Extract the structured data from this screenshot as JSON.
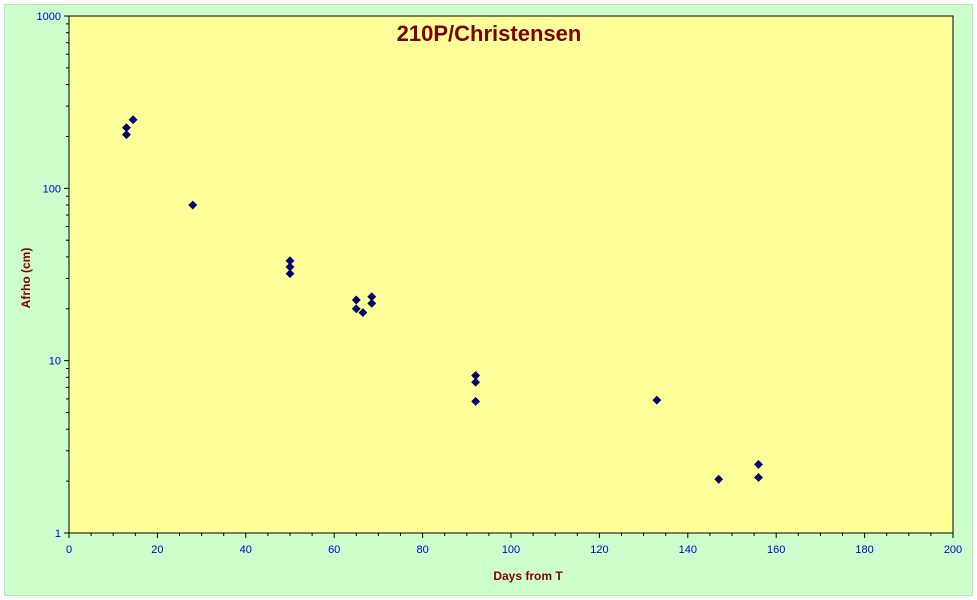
{
  "chart_data": {
    "type": "scatter",
    "title": "210P/Christensen",
    "xlabel": "Days from T",
    "ylabel": "Afrho (cm)",
    "xlim": [
      0,
      200
    ],
    "ylim": [
      1,
      1000
    ],
    "yscale": "log",
    "x_ticks": [
      "0",
      "20",
      "40",
      "60",
      "80",
      "100",
      "120",
      "140",
      "160",
      "180",
      "200"
    ],
    "y_ticks": [
      "1",
      "10",
      "100",
      "1000"
    ],
    "grid": false,
    "legend": "none",
    "series": [
      {
        "points": [
          {
            "x": 13,
            "y": 205
          },
          {
            "x": 13,
            "y": 225
          },
          {
            "x": 14.5,
            "y": 250
          },
          {
            "x": 28,
            "y": 80
          },
          {
            "x": 50,
            "y": 32
          },
          {
            "x": 50,
            "y": 35
          },
          {
            "x": 50,
            "y": 38
          },
          {
            "x": 65,
            "y": 20
          },
          {
            "x": 65,
            "y": 22.5
          },
          {
            "x": 66.5,
            "y": 19
          },
          {
            "x": 68.5,
            "y": 21.5
          },
          {
            "x": 68.5,
            "y": 23.5
          },
          {
            "x": 92,
            "y": 5.8
          },
          {
            "x": 92,
            "y": 7.5
          },
          {
            "x": 92,
            "y": 8.2
          },
          {
            "x": 133,
            "y": 5.9
          },
          {
            "x": 147,
            "y": 2.05
          },
          {
            "x": 156,
            "y": 2.1
          },
          {
            "x": 156,
            "y": 2.5
          }
        ]
      }
    ]
  },
  "colors": {
    "plot_background": "#ffff99",
    "frame_background": "#ccffcc",
    "marker_fill": "#000080",
    "title_color": "#800000",
    "tick_color": "#0000cc"
  }
}
